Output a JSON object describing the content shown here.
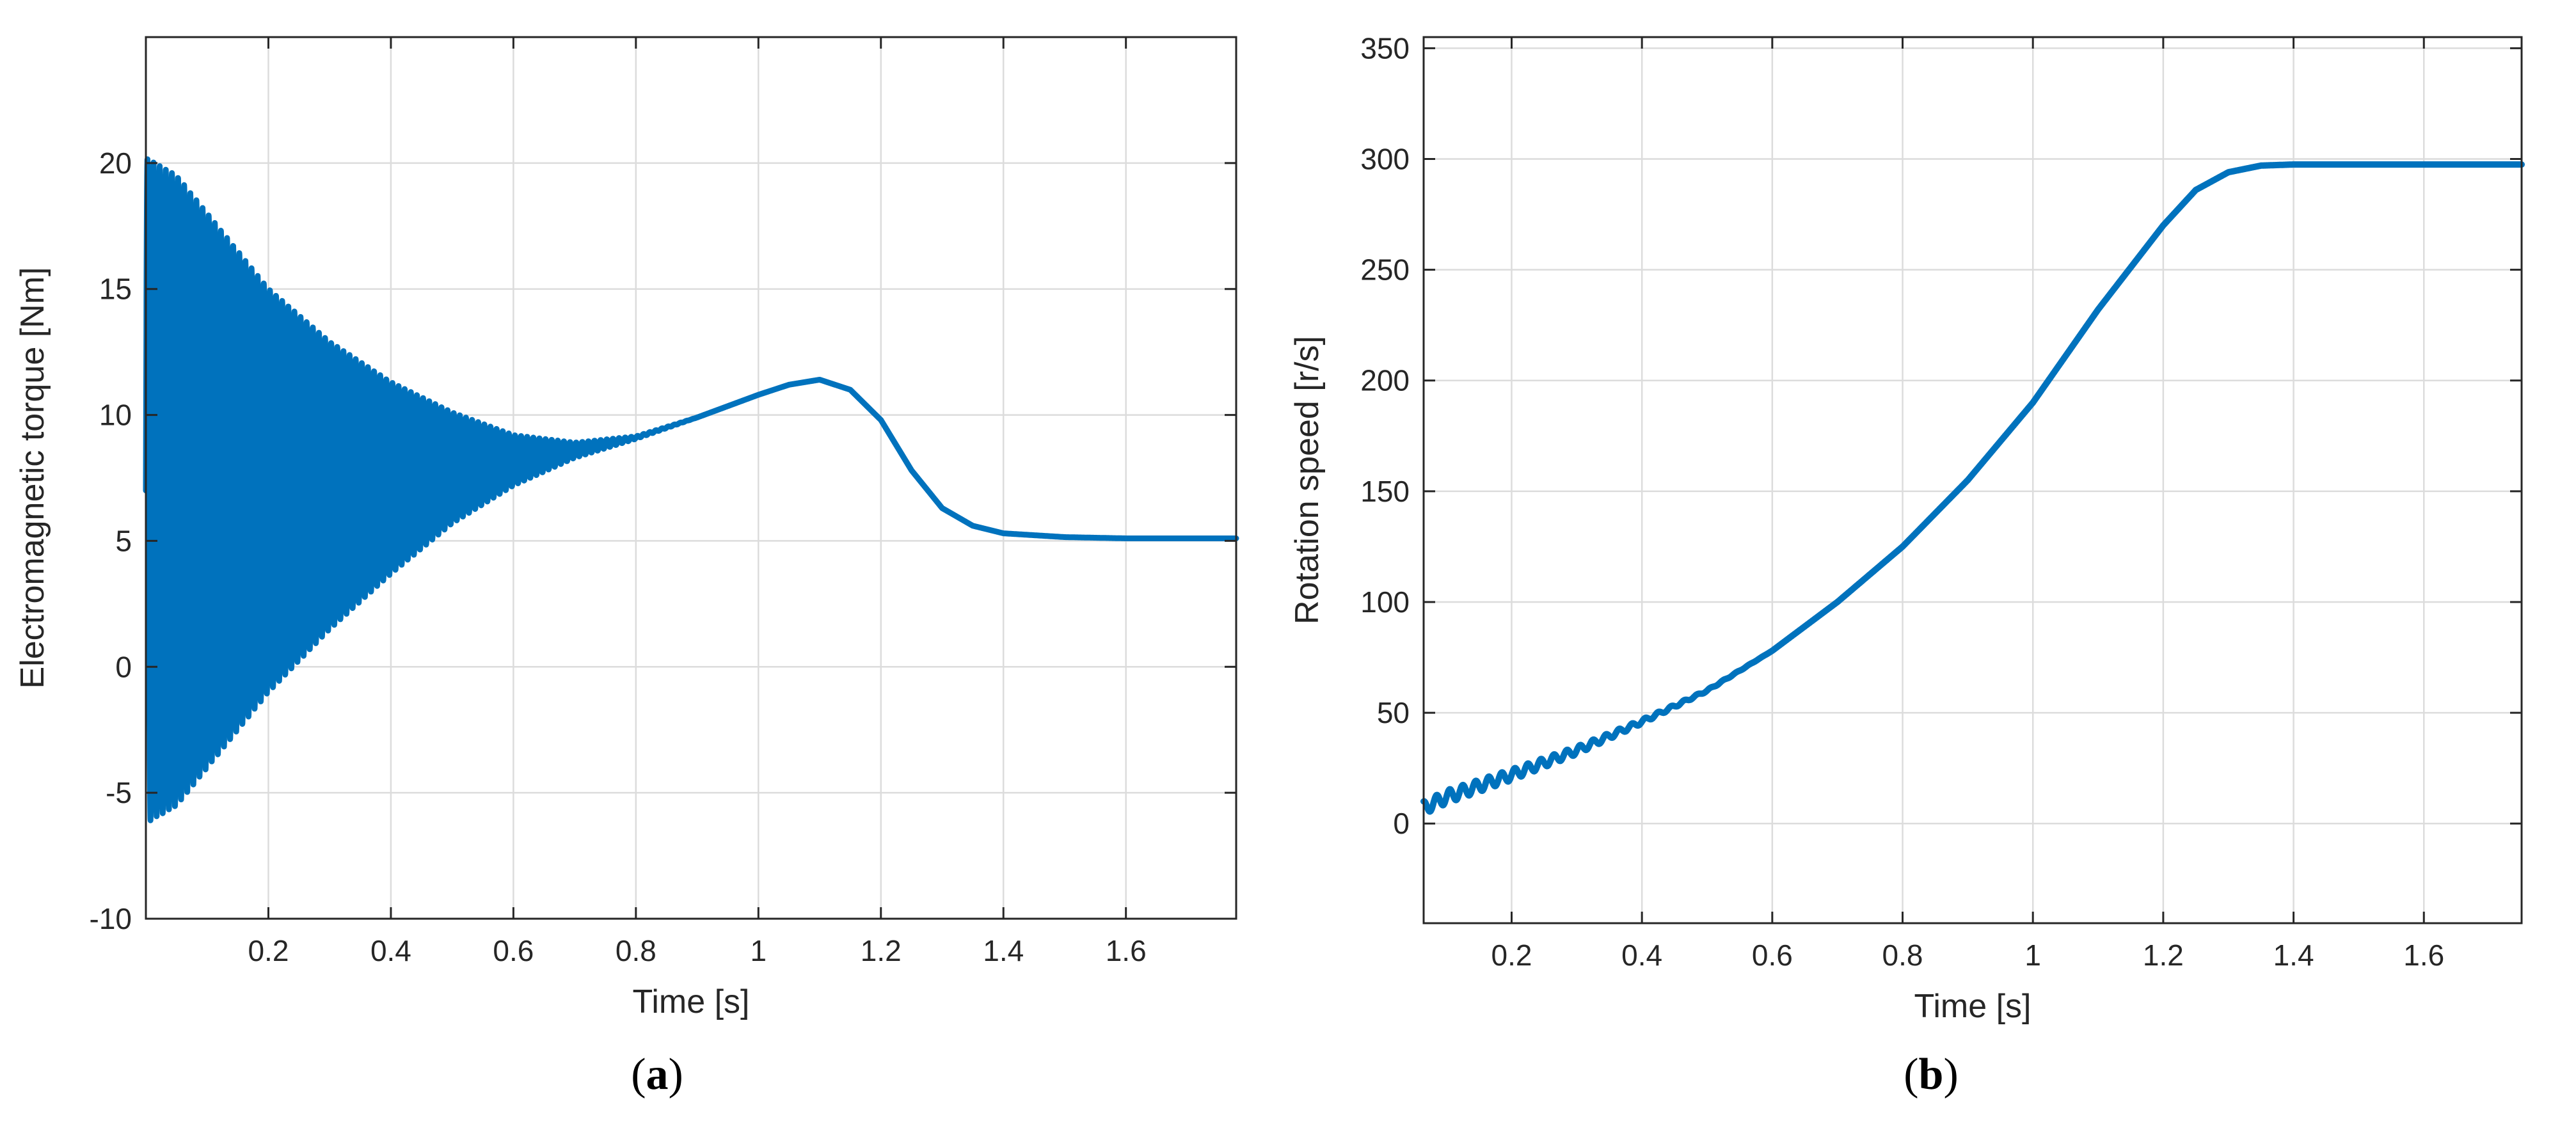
{
  "chart_data": [
    {
      "type": "line",
      "panel_label": "a",
      "xlabel": "Time [s]",
      "ylabel": "Electromagnetic torque [Nm]",
      "xlim": [
        0.0,
        1.78
      ],
      "ylim": [
        -10,
        25
      ],
      "xticks": [
        0.2,
        0.4,
        0.6,
        0.8,
        1.0,
        1.2,
        1.4,
        1.6
      ],
      "xtick_labels": [
        "0.2",
        "0.4",
        "0.6",
        "0.8",
        "1",
        "1.2",
        "1.4",
        "1.6"
      ],
      "yticks": [
        -10,
        -5,
        0,
        5,
        10,
        15,
        20
      ],
      "ytick_labels": [
        "-10",
        "-5",
        "0",
        "5",
        "10",
        "15",
        "20"
      ],
      "grid": true,
      "line_color": "#0072BD",
      "series": [
        {
          "description_points": "mean torque trend (oscillation envelope center) and oscillation amplitude",
          "x": [
            0.0,
            0.05,
            0.1,
            0.2,
            0.3,
            0.4,
            0.5,
            0.6,
            0.7,
            0.8,
            0.9,
            1.0,
            1.05,
            1.1,
            1.15,
            1.2,
            1.25,
            1.3,
            1.35,
            1.4,
            1.5,
            1.6,
            1.78
          ],
          "mean": [
            7.0,
            7.0,
            7.0,
            7.0,
            7.2,
            7.5,
            7.9,
            8.2,
            8.6,
            9.1,
            9.9,
            10.8,
            11.2,
            11.4,
            11.0,
            9.8,
            7.8,
            6.3,
            5.6,
            5.3,
            5.15,
            5.1,
            5.1
          ],
          "amplitude": [
            13.2,
            12.5,
            11.0,
            8.0,
            5.7,
            3.8,
            2.2,
            1.0,
            0.3,
            0.05,
            0,
            0,
            0,
            0,
            0,
            0,
            0,
            0,
            0,
            0,
            0,
            0,
            0
          ],
          "oscillation_frequency_hz": 100
        }
      ]
    },
    {
      "type": "line",
      "panel_label": "b",
      "xlabel": "Time [s]",
      "ylabel": "Rotation speed [r/s]",
      "xlim": [
        0.065,
        1.75
      ],
      "ylim": [
        -45,
        355
      ],
      "xticks": [
        0.2,
        0.4,
        0.6,
        0.8,
        1.0,
        1.2,
        1.4,
        1.6
      ],
      "xtick_labels": [
        "0.2",
        "0.4",
        "0.6",
        "0.8",
        "1",
        "1.2",
        "1.4",
        "1.6"
      ],
      "yticks": [
        0,
        50,
        100,
        150,
        200,
        250,
        300,
        350
      ],
      "ytick_labels": [
        "0",
        "50",
        "100",
        "150",
        "200",
        "250",
        "300",
        "350"
      ],
      "grid": true,
      "line_color": "#0072BD",
      "series": [
        {
          "x": [
            0.065,
            0.1,
            0.2,
            0.3,
            0.4,
            0.5,
            0.6,
            0.7,
            0.8,
            0.9,
            1.0,
            1.1,
            1.2,
            1.25,
            1.3,
            1.35,
            1.4,
            1.5,
            1.6,
            1.75
          ],
          "y": [
            7,
            12,
            22,
            33,
            46,
            60,
            78,
            100,
            125,
            155,
            190,
            232,
            270,
            286,
            294,
            297,
            297.5,
            297.5,
            297.5,
            297.5
          ],
          "ripple_amplitude": [
            3,
            3,
            2.5,
            1.8,
            1.0,
            0.4,
            0,
            0,
            0,
            0,
            0,
            0,
            0,
            0,
            0,
            0,
            0,
            0,
            0,
            0
          ],
          "ripple_frequency_hz": 50
        }
      ]
    }
  ]
}
